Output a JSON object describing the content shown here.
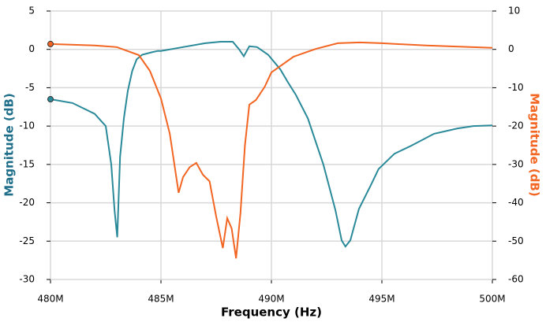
{
  "chart_data": {
    "type": "line",
    "xlabel": "Frequency (Hz)",
    "ylabel": "Magnitude (dB)",
    "y2label": "Magnitude (dB)",
    "xlim": [
      480000000,
      500000000
    ],
    "xticks": [
      {
        "value": 480000000,
        "label": "480M"
      },
      {
        "value": 485000000,
        "label": "485M"
      },
      {
        "value": 490000000,
        "label": "490M"
      },
      {
        "value": 495000000,
        "label": "495M"
      },
      {
        "value": 500000000,
        "label": "500M"
      }
    ],
    "ylim": [
      -30,
      5
    ],
    "yticks": [
      5,
      0,
      -5,
      -10,
      -15,
      -20,
      -25,
      -30
    ],
    "y2lim": [
      -60,
      10
    ],
    "y2ticks": [
      10,
      0,
      -10,
      -20,
      -30,
      -40,
      -50,
      -60
    ],
    "grid": true,
    "series": [
      {
        "name": "Magnitude (dB)",
        "color": "#2a8a99",
        "axis": "y",
        "x": [
          480000000,
          481000000,
          482000000,
          482500000,
          482600000,
          482750000,
          482900000,
          483020000,
          483150000,
          483320000,
          483500000,
          483700000,
          483900000,
          484150000,
          484550000,
          484850000,
          485000000,
          486000000,
          487000000,
          487700000,
          488250000,
          488540000,
          488750000,
          489000000,
          489350000,
          489850000,
          490400000,
          490750000,
          491100000,
          491650000,
          492350000,
          492900000,
          493180000,
          493350000,
          493570000,
          493960000,
          494500000,
          494850000,
          495570000,
          496300000,
          497360000,
          498430000,
          499140000,
          500000000
        ],
        "values": [
          -6.5,
          -7,
          -8.4,
          -10,
          -12,
          -15,
          -21,
          -24.5,
          -14,
          -9,
          -5.4,
          -2.8,
          -1.3,
          -0.7,
          -0.4,
          -0.2,
          -0.2,
          0.3,
          0.8,
          1,
          1,
          0,
          -0.9,
          0.4,
          0.3,
          -0.7,
          -2.6,
          -4.3,
          -5.9,
          -9,
          -15,
          -21,
          -24.9,
          -25.7,
          -24.9,
          -20.8,
          -17.7,
          -15.6,
          -13.6,
          -12.6,
          -11,
          -10.3,
          -10,
          -9.9
        ]
      },
      {
        "name": "Magnitude (dB)",
        "color": "#f26522",
        "axis": "y2",
        "x": [
          480000000,
          482000000,
          483000000,
          484000000,
          484500000,
          485000000,
          485400000,
          485800000,
          486000000,
          486300000,
          486600000,
          486900000,
          487200000,
          487500000,
          487800000,
          488000000,
          488200000,
          488400000,
          488600000,
          488800000,
          489000000,
          489300000,
          489700000,
          490000000,
          491000000,
          492000000,
          493000000,
          494000000,
          495000000,
          497000000,
          500000000
        ],
        "values": [
          1.4,
          1,
          0.6,
          -1.5,
          -5.6,
          -12.8,
          -22,
          -37.4,
          -33.3,
          -30.7,
          -29.6,
          -32.7,
          -34.4,
          -43.6,
          -51.8,
          -44,
          -46.7,
          -54.5,
          -42.6,
          -25.1,
          -14.4,
          -13.2,
          -9.7,
          -6,
          -1.9,
          0.1,
          1.6,
          1.8,
          1.6,
          1,
          0.4
        ]
      }
    ]
  }
}
